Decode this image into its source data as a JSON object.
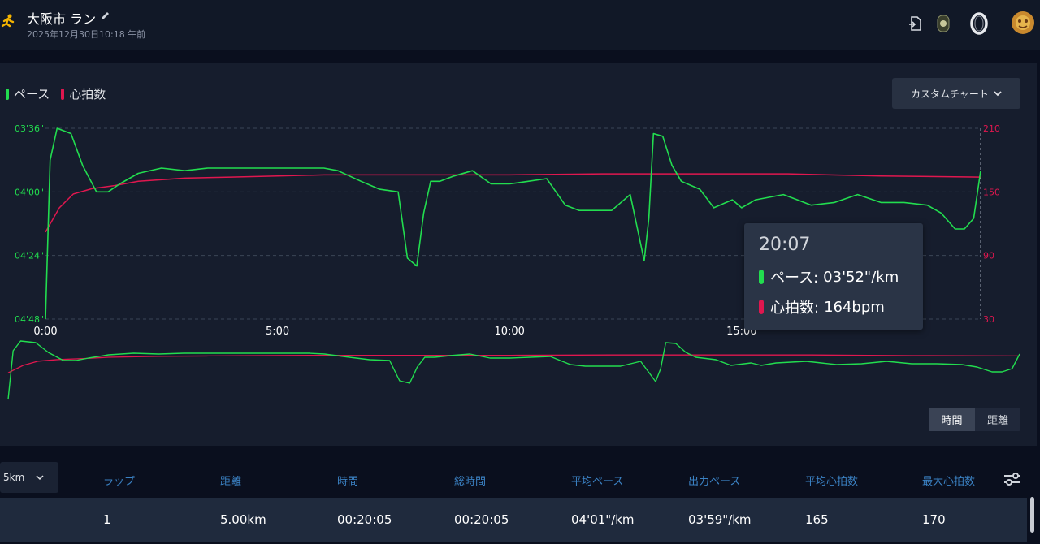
{
  "header": {
    "title": "大阪市 ラン",
    "subtitle": "2025年12月30日10:18 午前",
    "icons": [
      "run-icon",
      "edit-icon",
      "export-icon",
      "badge-icon",
      "ring-icon",
      "avatar"
    ]
  },
  "chart": {
    "legend": [
      {
        "label": "ペース",
        "color": "#22dd4f"
      },
      {
        "label": "心拍数",
        "color": "#e0174f"
      }
    ],
    "custom_chart_label": "カスタムチャート",
    "toggle": {
      "time_label": "時間",
      "distance_label": "距離",
      "active": "時間"
    },
    "tooltip": {
      "time": "20:07",
      "pace_label": "ペース:",
      "pace_value": "03'52\"/km",
      "hr_label": "心拍数:",
      "hr_value": "164bpm"
    }
  },
  "chart_data": {
    "type": "line",
    "x_ticks": [
      "0:00",
      "5:00",
      "10:00",
      "15:00"
    ],
    "y_left_ticks": [
      "03'36\"",
      "04'00\"",
      "04'24\"",
      "04'48\""
    ],
    "y_right_ticks": [
      "210",
      "150",
      "90",
      "30"
    ],
    "x_unit": "minutes",
    "xlim": [
      0,
      20.15
    ],
    "y_left_lim_sec_per_km": [
      216,
      288
    ],
    "y_right_lim": [
      30,
      210
    ],
    "grid": true,
    "legend_position": "top-left",
    "series": [
      {
        "name": "ペース",
        "axis": "left",
        "color": "#22dd4f",
        "x": [
          0,
          0.1,
          0.25,
          0.55,
          0.8,
          1.1,
          1.35,
          1.6,
          2.0,
          2.5,
          3.0,
          3.5,
          4.0,
          4.5,
          5.0,
          5.5,
          6.0,
          6.3,
          6.8,
          7.2,
          7.6,
          7.8,
          8.0,
          8.15,
          8.3,
          8.5,
          8.8,
          9.2,
          9.6,
          10.0,
          10.4,
          10.8,
          11.2,
          11.5,
          11.9,
          12.2,
          12.6,
          12.9,
          13.0,
          13.1,
          13.3,
          13.5,
          13.7,
          14.1,
          14.4,
          14.8,
          15.0,
          15.3,
          15.6,
          15.9,
          16.2,
          16.5,
          17.0,
          17.5,
          18.0,
          18.5,
          19.0,
          19.3,
          19.6,
          19.8,
          20.0,
          20.15
        ],
        "y_sec_per_km": [
          288,
          228,
          216,
          218,
          230,
          240,
          240,
          237,
          233,
          231,
          232,
          231,
          231,
          231,
          231,
          231,
          231,
          232,
          236,
          239,
          240,
          265,
          268,
          248,
          236,
          236,
          234,
          232,
          237,
          237,
          236,
          235,
          245,
          247,
          247,
          247,
          241,
          266,
          250,
          218,
          219,
          230,
          236,
          239,
          246,
          243,
          246,
          243,
          242,
          241,
          243,
          245,
          244,
          241,
          244,
          244,
          245,
          248,
          254,
          254,
          250,
          232
        ]
      },
      {
        "name": "心拍数",
        "axis": "right",
        "color": "#e0174f",
        "x": [
          0,
          0.3,
          0.6,
          1.0,
          1.5,
          2.0,
          3.0,
          4.0,
          5.0,
          6.0,
          8.0,
          10.0,
          12.0,
          13.0,
          14.0,
          16.0,
          18.0,
          20.15
        ],
        "y": [
          112,
          135,
          148,
          153,
          156,
          160,
          163,
          164,
          165,
          166,
          166,
          166,
          167,
          167,
          167,
          167,
          165,
          164
        ]
      }
    ]
  },
  "laps": {
    "select_value": "5km",
    "headers": [
      "ラップ",
      "距離",
      "時間",
      "総時間",
      "平均ペース",
      "出力ペース",
      "平均心拍数",
      "最大心拍数"
    ],
    "rows": [
      [
        "1",
        "5.00km",
        "00:20:05",
        "00:20:05",
        "04'01\"/km",
        "03'59\"/km",
        "165",
        "170"
      ]
    ]
  }
}
